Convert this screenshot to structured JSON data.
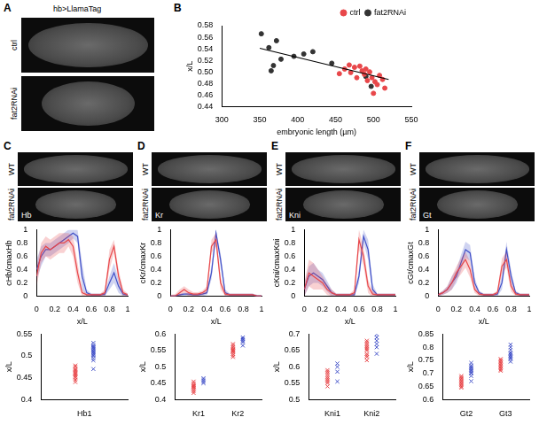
{
  "panel_A": {
    "letter": "A",
    "title": "hb>LlamaTag",
    "rows": [
      "ctrl",
      "fat2RNAi"
    ]
  },
  "image_panels": [
    {
      "letter": "C",
      "rows": [
        "WT",
        "fat2RNAi"
      ],
      "stain": "Hb"
    },
    {
      "letter": "D",
      "rows": [
        "WT",
        "fat2RNAi"
      ],
      "stain": "Kr"
    },
    {
      "letter": "E",
      "rows": [
        "WT",
        "fat2RNAi"
      ],
      "stain": "Kni"
    },
    {
      "letter": "F",
      "rows": [
        "WT",
        "fat2RNAi"
      ],
      "stain": "Gt"
    }
  ],
  "chart_data": [
    {
      "type": "scatter",
      "panel": "B",
      "x_label": "embryonic length (µm)",
      "y_label": "x/L",
      "xlim": [
        300,
        550
      ],
      "xticks": [
        300,
        350,
        400,
        450,
        500,
        550
      ],
      "ylim": [
        0.44,
        0.58
      ],
      "yticks": [
        0.44,
        0.46,
        0.48,
        {
          "value": 0.5,
          "label": "0.50"
        },
        0.52,
        0.54,
        0.56,
        0.58
      ],
      "legend": "top-right",
      "grid": false,
      "series": [
        {
          "name": "ctrl",
          "color": "#e8474a",
          "marker": "circle",
          "values": [
            [
              455,
              0.497
            ],
            [
              462,
              0.505
            ],
            [
              468,
              0.512
            ],
            [
              470,
              0.499
            ],
            [
              475,
              0.508
            ],
            [
              478,
              0.49
            ],
            [
              482,
              0.51
            ],
            [
              485,
              0.502
            ],
            [
              488,
              0.496
            ],
            [
              490,
              0.505
            ],
            [
              492,
              0.485
            ],
            [
              495,
              0.5
            ],
            [
              498,
              0.49
            ],
            [
              502,
              0.483
            ],
            [
              505,
              0.478
            ],
            [
              508,
              0.494
            ],
            [
              512,
              0.487
            ],
            [
              515,
              0.472
            ],
            [
              500,
              0.463
            ]
          ]
        },
        {
          "name": "fat2RNAi",
          "color": "#333333",
          "marker": "circle",
          "values": [
            [
              352,
              0.566
            ],
            [
              362,
              0.542
            ],
            [
              365,
              0.502
            ],
            [
              368,
              0.511
            ],
            [
              372,
              0.554
            ],
            [
              378,
              0.522
            ],
            [
              395,
              0.527
            ],
            [
              408,
              0.531
            ],
            [
              420,
              0.535
            ],
            [
              445,
              0.515
            ],
            [
              490,
              0.492
            ],
            [
              497,
              0.475
            ]
          ]
        },
        {
          "type": "line",
          "color": "#000000",
          "values": [
            [
              350,
              0.541
            ],
            [
              520,
              0.487
            ]
          ]
        }
      ]
    },
    {
      "type": "line",
      "x_label": "x/L",
      "y_label": "cHb/cmaxHb",
      "x": [
        0,
        0.05,
        0.1,
        0.15,
        0.2,
        0.25,
        0.3,
        0.35,
        0.4,
        0.45,
        0.5,
        0.55,
        0.6,
        0.65,
        0.7,
        0.75,
        0.8,
        0.85,
        0.9,
        0.95,
        1
      ],
      "xlim": [
        0,
        1
      ],
      "xticks": [
        0,
        0.2,
        0.4,
        0.6,
        0.8,
        1
      ],
      "ylim": [
        0,
        1
      ],
      "yticks": [
        0,
        0.2,
        0.4,
        0.6,
        0.8,
        1
      ],
      "grid": false,
      "series": [
        {
          "color": "#e8474a",
          "values": [
            0.3,
            0.65,
            0.75,
            0.7,
            0.75,
            0.8,
            0.8,
            0.85,
            0.75,
            0.35,
            0.05,
            0.02,
            0.02,
            0.02,
            0.02,
            0.05,
            0.55,
            0.75,
            0.3,
            0.05,
            0.02
          ],
          "sd": [
            0.15,
            0.15,
            0.15,
            0.15,
            0.15,
            0.15,
            0.15,
            0.1,
            0.15,
            0.15,
            0.05,
            0.02,
            0.02,
            0.02,
            0.02,
            0.05,
            0.15,
            0.1,
            0.1,
            0.05,
            0.02
          ]
        },
        {
          "color": "#4150c8",
          "values": [
            0.4,
            0.6,
            0.7,
            0.7,
            0.75,
            0.8,
            0.85,
            0.9,
            0.95,
            0.9,
            0.3,
            0.05,
            0.02,
            0.02,
            0.02,
            0.03,
            0.2,
            0.35,
            0.15,
            0.03,
            0.02
          ],
          "sd": [
            0.15,
            0.15,
            0.1,
            0.1,
            0.1,
            0.1,
            0.1,
            0.1,
            0.08,
            0.1,
            0.2,
            0.05,
            0.02,
            0.02,
            0.02,
            0.03,
            0.1,
            0.15,
            0.1,
            0.03,
            0.02
          ]
        }
      ]
    },
    {
      "type": "scatter",
      "y_label": "x/L",
      "categories": [
        "Hb1"
      ],
      "ylim": [
        0.4,
        0.55
      ],
      "yticks": [
        0.4,
        0.45,
        0.5,
        0.55
      ],
      "marker": "x",
      "grid": false,
      "series": [
        {
          "color": "#e8474a",
          "values": [
            [
              0.44,
              0.445,
              0.45,
              0.452,
              0.455,
              0.458,
              0.46,
              0.462,
              0.465,
              0.468,
              0.47,
              0.475,
              0.478
            ]
          ]
        },
        {
          "color": "#4150c8",
          "values": [
            [
              0.47,
              0.49,
              0.495,
              0.5,
              0.502,
              0.505,
              0.508,
              0.51,
              0.512,
              0.515,
              0.518,
              0.52,
              0.522,
              0.525,
              0.53
            ]
          ]
        }
      ]
    },
    {
      "type": "line",
      "x_label": "x/L",
      "y_label": "cKr/cmaxKr",
      "x": [
        0,
        0.05,
        0.1,
        0.15,
        0.2,
        0.25,
        0.3,
        0.35,
        0.4,
        0.45,
        0.5,
        0.55,
        0.6,
        0.65,
        0.7,
        0.75,
        0.8,
        0.85,
        0.9,
        0.95,
        1
      ],
      "xlim": [
        0,
        1
      ],
      "xticks": [
        0,
        0.2,
        0.4,
        0.6,
        0.8,
        1
      ],
      "ylim": [
        0,
        1
      ],
      "yticks": [
        0,
        0.2,
        0.4,
        0.6,
        0.8,
        1
      ],
      "grid": false,
      "series": [
        {
          "color": "#e8474a",
          "values": [
            0,
            0,
            0.05,
            0.1,
            0.05,
            0.03,
            0.03,
            0.05,
            0.1,
            0.75,
            0.85,
            0.2,
            0.03,
            0.02,
            0.02,
            0.02,
            0.02,
            0.02,
            0.02,
            0,
            0
          ],
          "sd": [
            0.02,
            0.03,
            0.05,
            0.05,
            0.05,
            0.03,
            0.03,
            0.03,
            0.05,
            0.1,
            0.1,
            0.1,
            0.03,
            0.02,
            0.02,
            0.02,
            0.02,
            0.02,
            0.02,
            0.02,
            0.02
          ]
        },
        {
          "color": "#4150c8",
          "values": [
            0,
            0,
            0.02,
            0.03,
            0.03,
            0.02,
            0.02,
            0.03,
            0.05,
            0.35,
            0.95,
            0.55,
            0.05,
            0.02,
            0.02,
            0.02,
            0.02,
            0.02,
            0.02,
            0,
            0
          ],
          "sd": [
            0.02,
            0.02,
            0.02,
            0.02,
            0.02,
            0.02,
            0.02,
            0.03,
            0.03,
            0.1,
            0.05,
            0.1,
            0.05,
            0.02,
            0.02,
            0.02,
            0.02,
            0.02,
            0.02,
            0.02,
            0.02
          ]
        }
      ]
    },
    {
      "type": "scatter",
      "y_label": "x/L",
      "categories": [
        "Kr1",
        "Kr2"
      ],
      "ylim": [
        0.4,
        0.6
      ],
      "yticks": [
        0.4,
        0.45,
        0.5,
        0.55,
        0.6
      ],
      "marker": "x",
      "grid": false,
      "series": [
        {
          "color": "#e8474a",
          "values": [
            [
              0.42,
              0.425,
              0.43,
              0.435,
              0.438,
              0.44,
              0.442,
              0.445,
              0.45,
              0.455
            ],
            [
              0.53,
              0.535,
              0.54,
              0.545,
              0.548,
              0.55,
              0.552,
              0.555,
              0.56,
              0.565,
              0.57
            ]
          ]
        },
        {
          "color": "#4150c8",
          "values": [
            [
              0.45,
              0.455,
              0.46,
              0.465
            ],
            [
              0.565,
              0.575,
              0.58,
              0.585,
              0.59
            ]
          ]
        }
      ]
    },
    {
      "type": "line",
      "x_label": "x/L",
      "y_label": "cKni/cmaxKni",
      "x": [
        0,
        0.05,
        0.1,
        0.15,
        0.2,
        0.25,
        0.3,
        0.35,
        0.4,
        0.45,
        0.5,
        0.55,
        0.6,
        0.65,
        0.7,
        0.75,
        0.8,
        0.85,
        0.9,
        0.95,
        1
      ],
      "xlim": [
        0,
        1
      ],
      "xticks": [
        0,
        0.2,
        0.4,
        0.6,
        0.8,
        1
      ],
      "ylim": [
        0,
        1
      ],
      "yticks": [
        0,
        0.2,
        0.4,
        0.6,
        0.8,
        1
      ],
      "grid": false,
      "series": [
        {
          "color": "#e8474a",
          "values": [
            0.1,
            0.35,
            0.3,
            0.25,
            0.2,
            0.1,
            0.05,
            0.02,
            0.02,
            0.02,
            0.02,
            0.05,
            0.85,
            0.6,
            0.15,
            0.03,
            0.02,
            0.02,
            0.02,
            0.02,
            0.02
          ],
          "sd": [
            0.1,
            0.2,
            0.2,
            0.15,
            0.1,
            0.08,
            0.05,
            0.02,
            0.02,
            0.02,
            0.02,
            0.05,
            0.15,
            0.15,
            0.1,
            0.05,
            0.02,
            0.02,
            0.02,
            0.02,
            0.02
          ]
        },
        {
          "color": "#4150c8",
          "values": [
            0.1,
            0.3,
            0.35,
            0.3,
            0.25,
            0.15,
            0.05,
            0.02,
            0.02,
            0.02,
            0.02,
            0.02,
            0.3,
            0.9,
            0.7,
            0.1,
            0.02,
            0.02,
            0.02,
            0.02,
            0.02
          ],
          "sd": [
            0.1,
            0.15,
            0.15,
            0.1,
            0.1,
            0.08,
            0.05,
            0.02,
            0.02,
            0.02,
            0.02,
            0.02,
            0.1,
            0.1,
            0.15,
            0.08,
            0.02,
            0.02,
            0.02,
            0.02,
            0.02
          ]
        }
      ]
    },
    {
      "type": "scatter",
      "y_label": "x/L",
      "categories": [
        "Kni1",
        "Kni2"
      ],
      "ylim": [
        0.5,
        0.7
      ],
      "yticks": [
        0.5,
        0.55,
        0.6,
        0.65,
        0.7
      ],
      "marker": "x",
      "grid": false,
      "series": [
        {
          "color": "#e8474a",
          "values": [
            [
              0.54,
              0.55,
              0.555,
              0.56,
              0.565,
              0.57,
              0.575,
              0.58,
              0.585,
              0.59
            ],
            [
              0.62,
              0.63,
              0.635,
              0.64,
              0.65,
              0.655,
              0.66,
              0.665,
              0.67,
              0.675,
              0.68
            ]
          ]
        },
        {
          "color": "#4150c8",
          "values": [
            [
              0.555,
              0.585,
              0.6,
              0.61
            ],
            [
              0.64,
              0.66,
              0.67,
              0.68,
              0.69,
              0.7
            ]
          ]
        }
      ]
    },
    {
      "type": "line",
      "x_label": "x/L",
      "y_label": "cGt/cmaxGt",
      "x": [
        0,
        0.05,
        0.1,
        0.15,
        0.2,
        0.25,
        0.3,
        0.35,
        0.4,
        0.45,
        0.5,
        0.55,
        0.6,
        0.65,
        0.7,
        0.75,
        0.8,
        0.85,
        0.9,
        0.95,
        1
      ],
      "xlim": [
        0,
        1
      ],
      "xticks": [
        0,
        0.2,
        0.4,
        0.6,
        0.8,
        1
      ],
      "ylim": [
        0,
        1
      ],
      "yticks": [
        0,
        0.2,
        0.4,
        0.6,
        0.8,
        1
      ],
      "grid": false,
      "series": [
        {
          "color": "#e8474a",
          "values": [
            0.02,
            0.05,
            0.1,
            0.2,
            0.35,
            0.45,
            0.55,
            0.4,
            0.1,
            0.03,
            0.02,
            0.02,
            0.02,
            0.05,
            0.45,
            0.55,
            0.15,
            0.03,
            0.02,
            0.02,
            0.02
          ],
          "sd": [
            0.02,
            0.03,
            0.05,
            0.1,
            0.1,
            0.12,
            0.12,
            0.12,
            0.05,
            0.03,
            0.02,
            0.02,
            0.02,
            0.03,
            0.12,
            0.12,
            0.08,
            0.03,
            0.02,
            0.02,
            0.02
          ]
        },
        {
          "color": "#4150c8",
          "values": [
            0.02,
            0.05,
            0.1,
            0.2,
            0.3,
            0.5,
            0.7,
            0.65,
            0.2,
            0.05,
            0.02,
            0.02,
            0.02,
            0.03,
            0.2,
            0.7,
            0.3,
            0.05,
            0.02,
            0.02,
            0.02
          ],
          "sd": [
            0.02,
            0.03,
            0.05,
            0.1,
            0.1,
            0.12,
            0.12,
            0.12,
            0.08,
            0.03,
            0.02,
            0.02,
            0.02,
            0.03,
            0.1,
            0.12,
            0.1,
            0.03,
            0.02,
            0.02,
            0.02
          ]
        }
      ]
    },
    {
      "type": "scatter",
      "y_label": "x/L",
      "categories": [
        "Gt2",
        "Gt3"
      ],
      "ylim": [
        0.6,
        0.85
      ],
      "yticks": [
        0.6,
        0.65,
        0.7,
        0.75,
        0.8,
        0.85
      ],
      "marker": "x",
      "grid": false,
      "series": [
        {
          "color": "#e8474a",
          "values": [
            [
              0.645,
              0.65,
              0.655,
              0.66,
              0.665,
              0.67,
              0.675,
              0.68,
              0.685,
              0.69
            ],
            [
              0.71,
              0.715,
              0.72,
              0.725,
              0.73,
              0.735,
              0.74,
              0.745,
              0.75,
              0.755
            ]
          ]
        },
        {
          "color": "#4150c8",
          "values": [
            [
              0.67,
              0.69,
              0.7,
              0.705,
              0.71,
              0.715,
              0.72,
              0.725,
              0.73,
              0.74
            ],
            [
              0.745,
              0.755,
              0.76,
              0.765,
              0.77,
              0.775,
              0.78,
              0.79,
              0.8,
              0.81
            ]
          ]
        }
      ]
    }
  ]
}
